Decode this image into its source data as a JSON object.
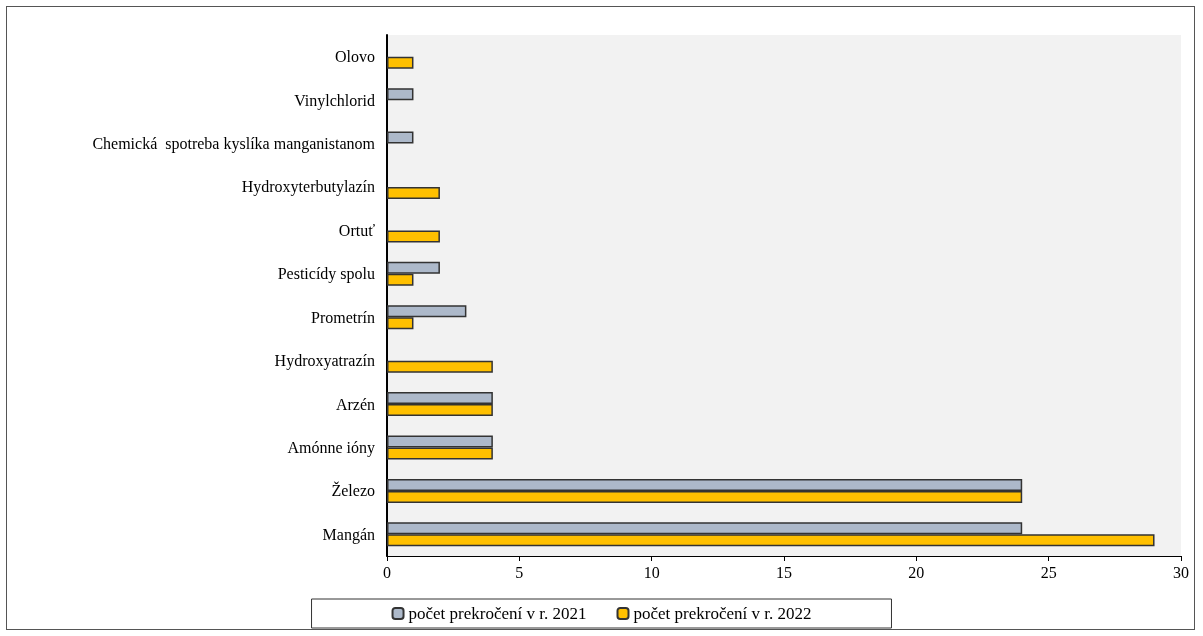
{
  "chart_data": {
    "type": "bar",
    "orientation": "horizontal",
    "categories": [
      "Olovo",
      "Vinylchlorid",
      "Chemická  spotreba kyslíka manganistanom",
      "Hydroxyterbutylazín",
      "Ortuť",
      "Pesticídy spolu",
      "Prometrín",
      "Hydroxyatrazín",
      "Arzén",
      "Amónne ióny",
      "Železo",
      "Mangán"
    ],
    "series": [
      {
        "name": "počet prekročení v r. 2021",
        "color": "#adb9ca",
        "values": [
          null,
          1,
          1,
          null,
          null,
          2,
          3,
          null,
          4,
          4,
          24,
          24
        ]
      },
      {
        "name": "počet prekročení v r. 2022",
        "color": "#ffc000",
        "values": [
          1,
          null,
          null,
          2,
          2,
          1,
          1,
          4,
          4,
          4,
          24,
          29
        ]
      }
    ],
    "xlim": [
      0,
      30
    ],
    "xticks": [
      0,
      5,
      10,
      15,
      20,
      25,
      30
    ],
    "grid": false,
    "legend": "bottom"
  }
}
